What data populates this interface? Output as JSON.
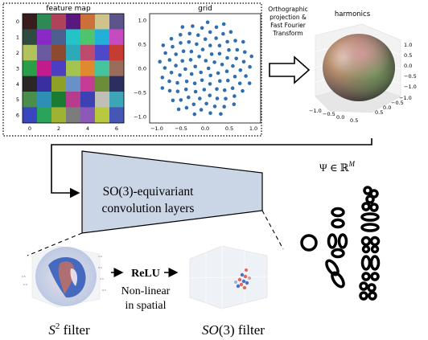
{
  "top_panel": {
    "feature_map": {
      "title": "feature map",
      "yticks": [
        "0",
        "1",
        "2",
        "3",
        "4",
        "5",
        "6"
      ],
      "xticks": [
        "0",
        "2",
        "4",
        "6"
      ],
      "colors": [
        [
          "#3a1c1c",
          "#2e8a55",
          "#b0435a",
          "#5a1780",
          "#cd6f3a",
          "#cec48b",
          "#5c558c"
        ],
        [
          "#2f4b3f",
          "#8a2ac6",
          "#4c5f8e",
          "#23c3c7",
          "#4dc46e",
          "#23b0d8",
          "#c54bbf"
        ],
        [
          "#b3c35c",
          "#6c5aa0",
          "#8e4a2f",
          "#2ea9ba",
          "#bd4b6f",
          "#4c4ac9",
          "#c63c32"
        ],
        [
          "#29a047",
          "#c21c8c",
          "#4c3ec3",
          "#a4c34f",
          "#e08a2f",
          "#46c49e",
          "#9a6d5a"
        ],
        [
          "#2b2727",
          "#3a2fa0",
          "#8ea026",
          "#6891c9",
          "#c53c95",
          "#6c8c3a",
          "#2c2e5f"
        ],
        [
          "#4b8e4c",
          "#2d8fb3",
          "#1a7c33",
          "#b63d8c",
          "#3d42b3",
          "#bfbfb5",
          "#3ea4b8"
        ],
        [
          "#3a46c0",
          "#2ca35a",
          "#9fb233",
          "#7c7c7c",
          "#8a5ab6",
          "#b8c93e",
          "#4656b5"
        ]
      ]
    },
    "grid": {
      "title": "grid",
      "ticks": [
        "1.0",
        "0.5",
        "0.0",
        "−0.5",
        "−1.0"
      ],
      "xticks": [
        "−1.0",
        "−0.5",
        "0.0",
        "0.5",
        "1.0"
      ],
      "point_color": "#2f6fb0"
    },
    "transform_label": [
      "Orthographic",
      "projection &",
      "Fast Fourier",
      "Transform"
    ],
    "harmonics": {
      "title": "harmonics",
      "zticks": [
        "1.0",
        "0.5",
        "0.0",
        "−0.5",
        "−1.0"
      ],
      "xticks": [
        "−1.0",
        "−0.5",
        "0.0",
        "0.5"
      ],
      "yticks": [
        "0.5",
        "0.0",
        "−0.5",
        "−1.0"
      ]
    }
  },
  "conv_block": {
    "line1": "SO(3)-equivariant",
    "line2": "convolution layers",
    "fill": "#cad6e6"
  },
  "psi": {
    "label": "Ψ ∈ ℝ",
    "sup": "M"
  },
  "bottom": {
    "relu": "ReLU",
    "nonlinear1": "Non-linear",
    "nonlinear2": "in spatial",
    "s2_base": "S",
    "s2_sup": "2",
    "s2_rest": " filter",
    "so3_label": "SO",
    "so3_rest": "(3) filter"
  }
}
